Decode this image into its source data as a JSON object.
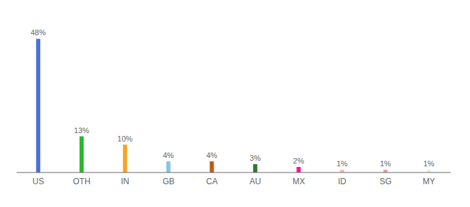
{
  "chart_data": {
    "type": "bar",
    "categories": [
      "US",
      "OTH",
      "IN",
      "GB",
      "CA",
      "AU",
      "MX",
      "ID",
      "SG",
      "MY"
    ],
    "values": [
      48,
      13,
      10,
      4,
      4,
      3,
      2,
      1,
      1,
      1
    ],
    "value_labels": [
      "48%",
      "13%",
      "10%",
      "4%",
      "4%",
      "3%",
      "2%",
      "1%",
      "1%",
      "1%"
    ],
    "colors": [
      "#4a6fdc",
      "#2db52d",
      "#f5a623",
      "#7ec8e3",
      "#b85c1a",
      "#2d7a2d",
      "#ff1493",
      "#ffb6c1",
      "#e8a0a0",
      "#f0ecd8"
    ],
    "ylim": [
      0,
      54
    ],
    "grid": false,
    "data_labels": true,
    "tick_labels": "x"
  }
}
